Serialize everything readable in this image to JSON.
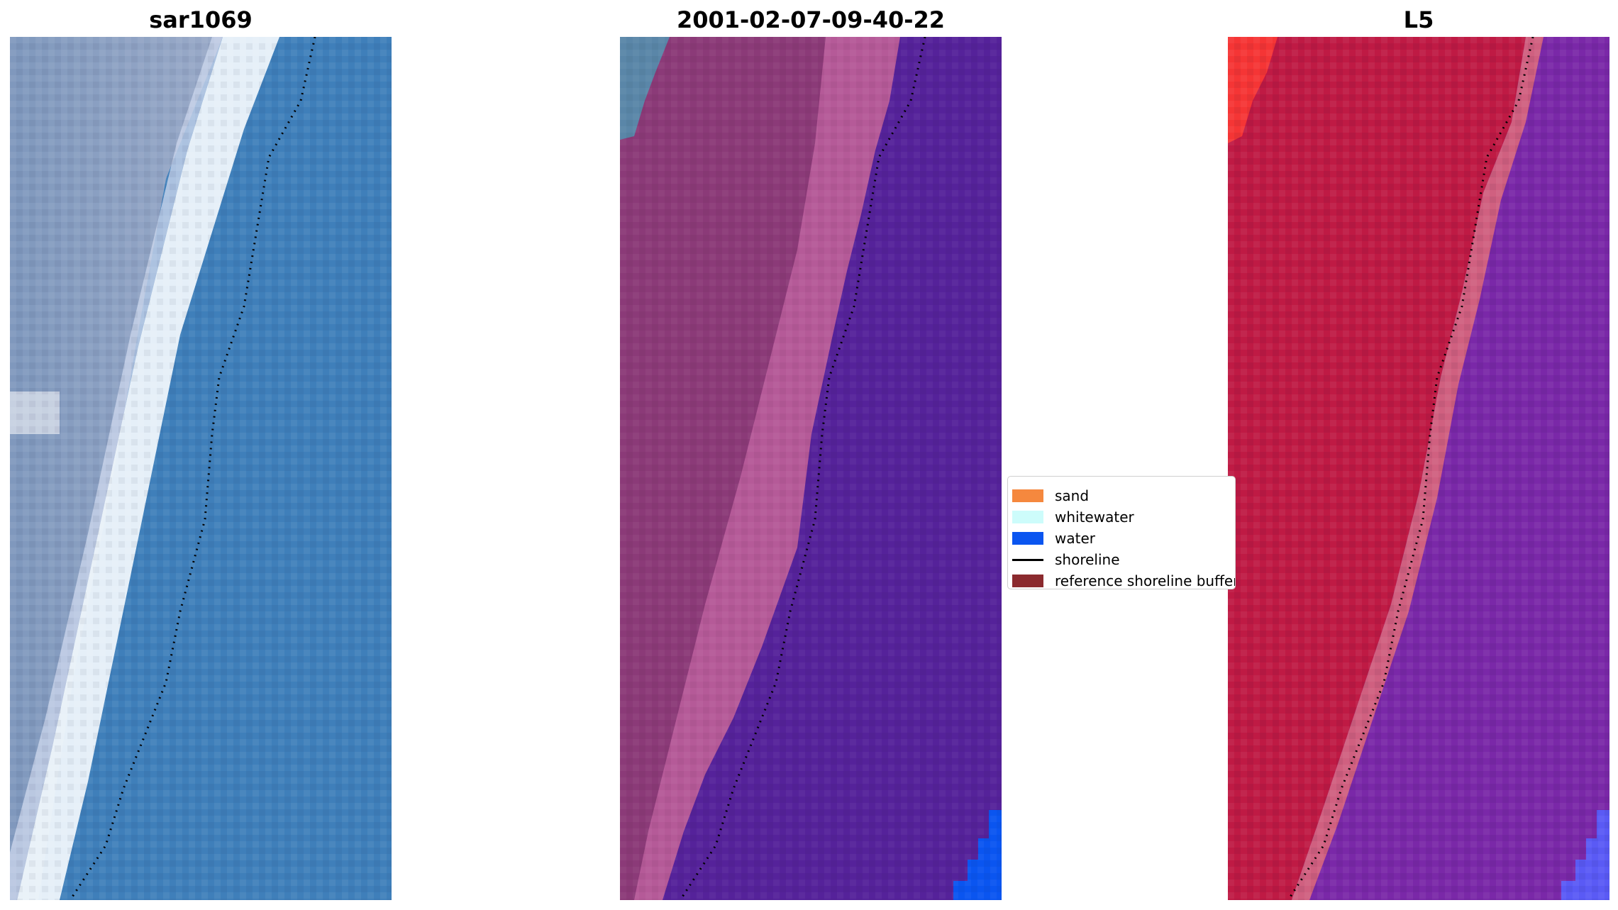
{
  "panels": [
    {
      "title": "sar1069"
    },
    {
      "title": "2001-02-07-09-40-22"
    },
    {
      "title": "L5"
    }
  ],
  "legend": {
    "items": [
      {
        "label": "sand",
        "color": "#f5883e"
      },
      {
        "label": "whitewater",
        "color": "#cdfcfb"
      },
      {
        "label": "water",
        "color": "#0a55f0"
      },
      {
        "label": "shoreline",
        "color": "#000000"
      },
      {
        "label": "reference shoreline buffer",
        "color": "#8b2a2e"
      }
    ]
  },
  "colors": {
    "sar_land": "#8c9cc0",
    "sar_foam": "#eef6fb",
    "sar_water": "#3f7fba",
    "class_land": "#8b3a78",
    "class_beach": "#b55a98",
    "class_water": "#55229a",
    "class_blue": "#0a55f0",
    "class_corner": "#5a86a8",
    "l5_land": "#bf1a44",
    "l5_edge": "#d06080",
    "l5_water": "#7a28a8",
    "l5_red": "#f53535",
    "l5_blue": "#5a5af5"
  }
}
